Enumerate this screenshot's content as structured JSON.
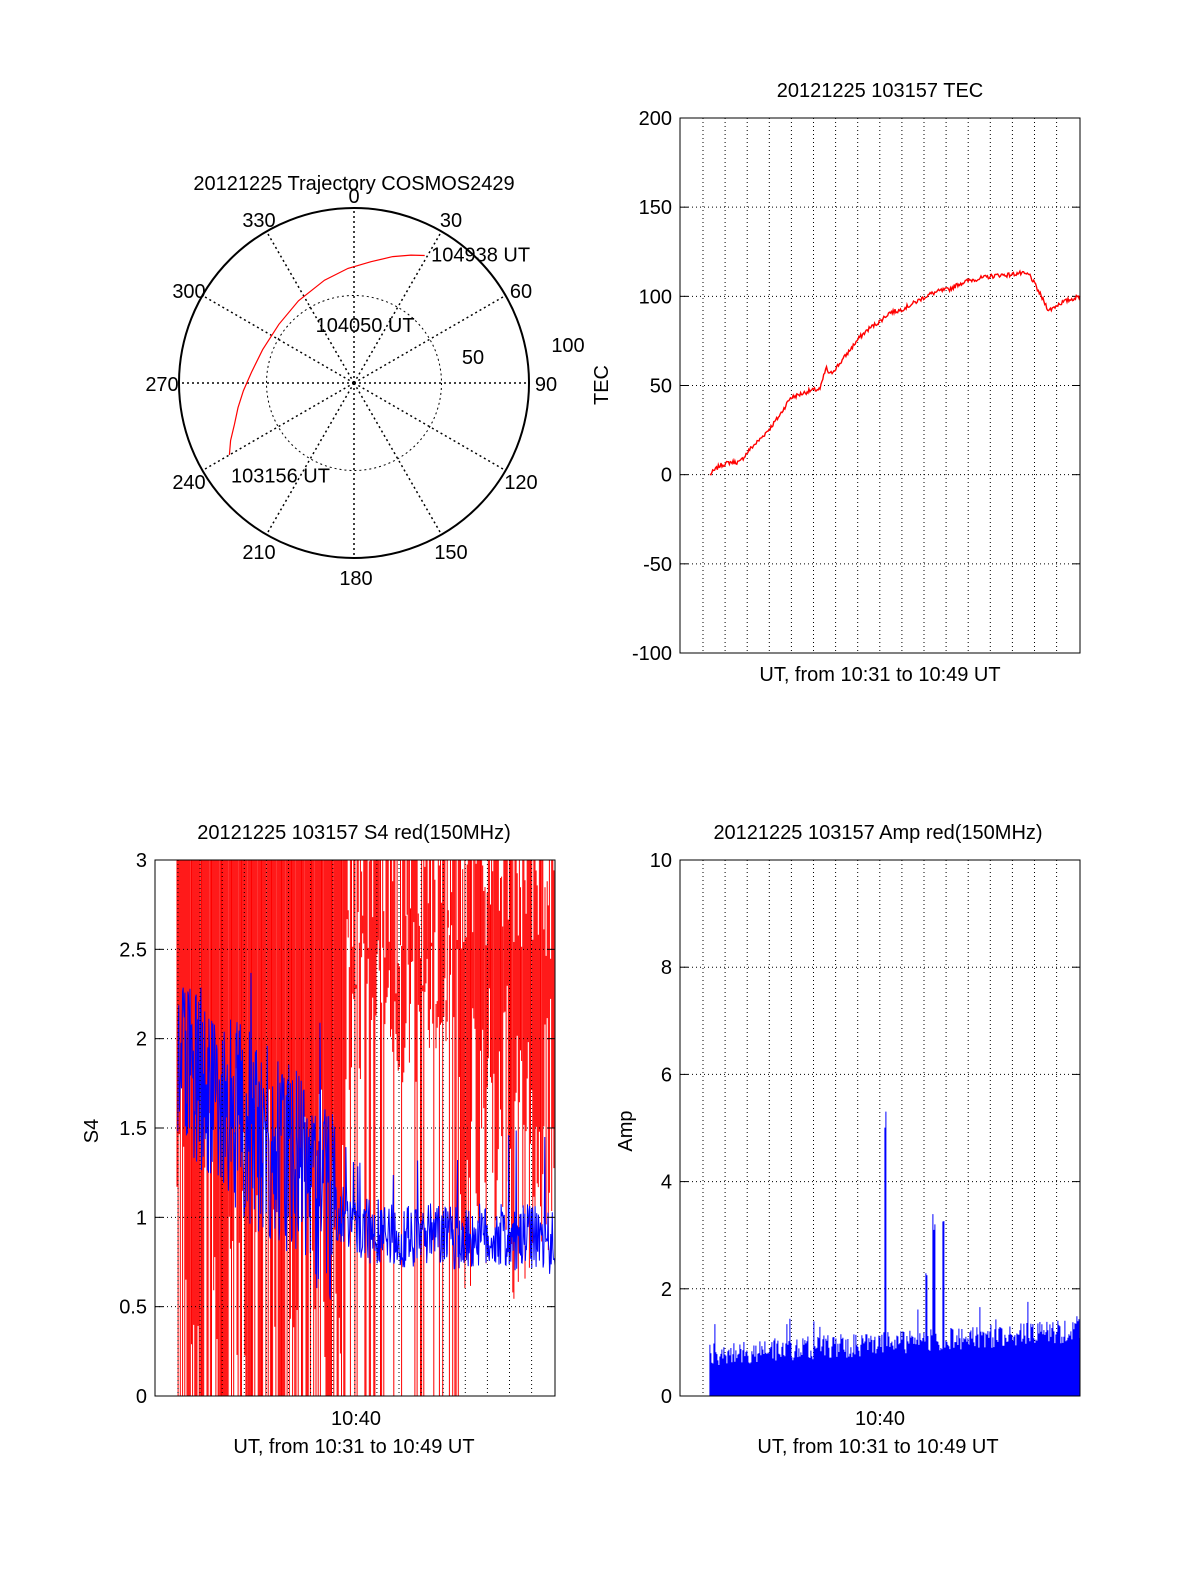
{
  "colors": {
    "trace": "#ff0000",
    "trace2": "#0000ff",
    "axis": "#000000",
    "grid": "#000000"
  },
  "chart_data": [
    {
      "type": "polar",
      "title": "20121225 Trajectory COSMOS2429",
      "azimuth_ticks": [
        "0",
        "30",
        "60",
        "90",
        "120",
        "150",
        "180",
        "210",
        "240",
        "270",
        "300",
        "330"
      ],
      "radial_ticks": [
        "50",
        "100"
      ],
      "grid": true,
      "series": [
        {
          "points": [
            {
              "az": 240,
              "el": 16
            },
            {
              "az": 245,
              "el": 20
            },
            {
              "az": 251,
              "el": 25
            },
            {
              "az": 258,
              "el": 29
            },
            {
              "az": 266,
              "el": 33
            },
            {
              "az": 276,
              "el": 37
            },
            {
              "az": 290,
              "el": 40
            },
            {
              "az": 308,
              "el": 41
            },
            {
              "az": 326,
              "el": 39
            },
            {
              "az": 344,
              "el": 35
            },
            {
              "az": 357,
              "el": 31
            },
            {
              "az": 8,
              "el": 27
            },
            {
              "az": 17,
              "el": 22
            },
            {
              "az": 24,
              "el": 18
            },
            {
              "az": 29,
              "el": 15
            }
          ]
        }
      ],
      "annotations": [
        {
          "text": "104938 UT",
          "az": 31,
          "el": 13
        },
        {
          "text": "104050 UT",
          "az": 7,
          "el": 60
        },
        {
          "text": "103156 UT",
          "az": 220,
          "el": 28
        }
      ]
    },
    {
      "type": "line",
      "title": "20121225 103157 TEC",
      "xlabel": "UT, from 10:31 to 10:49 UT",
      "ylabel": "TEC",
      "xlim": [
        10.5,
        10.834
      ],
      "ylim": [
        -100,
        200
      ],
      "yticks": [
        "-100",
        "-50",
        "0",
        "50",
        "100",
        "150",
        "200"
      ],
      "grid": true,
      "series": [
        {
          "x": [
            10.525,
            10.533,
            10.542,
            10.55,
            10.558,
            10.567,
            10.575,
            10.583,
            10.592,
            10.6,
            10.608,
            10.617,
            10.622,
            10.625,
            10.633,
            10.642,
            10.65,
            10.658,
            10.667,
            10.675,
            10.683,
            10.692,
            10.7,
            10.708,
            10.717,
            10.725,
            10.733,
            10.742,
            10.75,
            10.758,
            10.767,
            10.775,
            10.783,
            10.792,
            10.8,
            10.808,
            10.817,
            10.825,
            10.834
          ],
          "y": [
            0,
            5,
            7,
            7,
            14,
            20,
            26,
            33,
            43,
            45,
            47,
            48,
            60,
            56,
            62,
            70,
            77,
            82,
            86,
            91,
            92,
            95,
            98,
            101,
            103,
            104,
            107,
            109,
            110,
            111,
            112,
            112,
            113,
            112,
            102,
            92,
            96,
            98,
            100
          ]
        }
      ]
    },
    {
      "type": "line",
      "title": "20121225 103157 S4 red(150MHz)",
      "xlabel": "UT, from 10:31 to 10:49 UT",
      "ylabel": "S4",
      "xtick_labels": [
        "10:40"
      ],
      "xlim": [
        10.5,
        10.834
      ],
      "ylim": [
        0,
        3
      ],
      "yticks": [
        "0",
        "0.5",
        "1",
        "1.5",
        "2",
        "2.5",
        "3"
      ],
      "grid": true,
      "series": [
        {
          "color": "red",
          "x": [
            10.522,
            10.834
          ],
          "y": [
            0,
            3
          ]
        },
        {
          "color": "blue",
          "x": [
            10.519,
            10.53,
            10.54,
            10.55,
            10.56,
            10.57,
            10.58,
            10.59,
            10.6,
            10.61,
            10.62,
            10.63,
            10.64,
            10.65,
            10.66,
            10.67,
            10.68,
            10.69,
            10.7,
            10.71,
            10.72,
            10.73,
            10.74,
            10.75,
            10.76,
            10.77,
            10.78,
            10.79,
            10.8,
            10.81,
            10.82,
            10.834
          ],
          "y": [
            1.7,
            1.8,
            1.75,
            1.65,
            1.6,
            1.55,
            1.5,
            1.45,
            1.42,
            1.35,
            1.3,
            1.2,
            1.1,
            1.05,
            1.0,
            0.95,
            0.92,
            0.92,
            0.9,
            0.9,
            0.88,
            0.9,
            0.9,
            0.88,
            0.87,
            0.9,
            0.88,
            0.9,
            0.85,
            0.9,
            0.88,
            0.85
          ]
        }
      ]
    },
    {
      "type": "line",
      "title": "20121225 103157 Amp red(150MHz)",
      "xlabel": "UT, from 10:31 to 10:49 UT",
      "ylabel": "Amp",
      "xtick_labels": [
        "10:40"
      ],
      "xlim": [
        10.5,
        10.834
      ],
      "ylim": [
        0,
        10
      ],
      "yticks": [
        "0",
        "2",
        "4",
        "6",
        "8",
        "10"
      ],
      "grid": true,
      "series": [
        {
          "color": "blue",
          "x": [
            10.525,
            10.55,
            10.58,
            10.6,
            10.62,
            10.64,
            10.66,
            10.67,
            10.6715,
            10.673,
            10.675,
            10.69,
            10.7,
            10.706,
            10.712,
            10.716,
            10.72,
            10.724,
            10.74,
            10.76,
            10.78,
            10.8,
            10.82,
            10.834
          ],
          "y": [
            0.6,
            0.65,
            0.7,
            0.7,
            1.2,
            0.7,
            0.8,
            0.9,
            5.4,
            0.9,
            0.9,
            0.9,
            0.9,
            2.5,
            3.4,
            1.0,
            3.3,
            1.0,
            1.0,
            1.0,
            1.1,
            1.1,
            1.1,
            1.1
          ]
        }
      ]
    }
  ]
}
